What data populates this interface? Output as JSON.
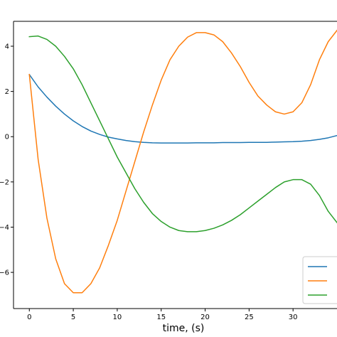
{
  "chart_data": {
    "type": "line",
    "xlabel": "time, (s)",
    "ylabel": "",
    "title": "",
    "xlim": [
      -1.8,
      35
    ],
    "ylim": [
      -7.6,
      5.1
    ],
    "xticks": [
      0,
      5,
      10,
      15,
      20,
      25,
      30
    ],
    "yticks": [
      -6,
      -4,
      -2,
      0,
      2,
      4
    ],
    "grid": false,
    "legend_placement": "bottom-right",
    "series": [
      {
        "color": "#1f77b4",
        "x": [
          0,
          1,
          2,
          3,
          4,
          5,
          6,
          7,
          8,
          9,
          10,
          11,
          12,
          13,
          14,
          15,
          16,
          17,
          18,
          19,
          20,
          21,
          22,
          23,
          24,
          25,
          26,
          27,
          28,
          29,
          30,
          31,
          32,
          33,
          34,
          35
        ],
        "y": [
          2.75,
          2.2,
          1.75,
          1.35,
          1.0,
          0.7,
          0.45,
          0.25,
          0.1,
          -0.02,
          -0.1,
          -0.17,
          -0.22,
          -0.25,
          -0.27,
          -0.28,
          -0.28,
          -0.28,
          -0.28,
          -0.27,
          -0.27,
          -0.27,
          -0.26,
          -0.26,
          -0.26,
          -0.25,
          -0.25,
          -0.25,
          -0.24,
          -0.23,
          -0.22,
          -0.2,
          -0.17,
          -0.12,
          -0.05,
          0.05
        ]
      },
      {
        "color": "#ff7f0e",
        "x": [
          0,
          1,
          2,
          3,
          4,
          5,
          6,
          7,
          8,
          9,
          10,
          11,
          12,
          13,
          14,
          15,
          16,
          17,
          18,
          19,
          20,
          21,
          22,
          23,
          24,
          25,
          26,
          27,
          28,
          29,
          30,
          31,
          32,
          33,
          34,
          35
        ],
        "y": [
          2.75,
          -1.0,
          -3.6,
          -5.4,
          -6.5,
          -6.9,
          -6.9,
          -6.5,
          -5.8,
          -4.8,
          -3.7,
          -2.4,
          -1.1,
          0.2,
          1.4,
          2.5,
          3.4,
          4.0,
          4.4,
          4.6,
          4.6,
          4.5,
          4.2,
          3.7,
          3.1,
          2.4,
          1.8,
          1.4,
          1.1,
          1.0,
          1.1,
          1.5,
          2.3,
          3.4,
          4.2,
          4.7
        ]
      },
      {
        "color": "#2ca02c",
        "x": [
          0,
          1,
          2,
          3,
          4,
          5,
          6,
          7,
          8,
          9,
          10,
          11,
          12,
          13,
          14,
          15,
          16,
          17,
          18,
          19,
          20,
          21,
          22,
          23,
          24,
          25,
          26,
          27,
          28,
          29,
          30,
          31,
          32,
          33,
          34,
          35
        ],
        "y": [
          4.42,
          4.45,
          4.3,
          4.0,
          3.55,
          3.0,
          2.3,
          1.5,
          0.7,
          -0.1,
          -0.9,
          -1.6,
          -2.3,
          -2.9,
          -3.4,
          -3.75,
          -4.0,
          -4.15,
          -4.2,
          -4.2,
          -4.15,
          -4.05,
          -3.9,
          -3.7,
          -3.45,
          -3.15,
          -2.85,
          -2.55,
          -2.25,
          -2.0,
          -1.9,
          -1.9,
          -2.1,
          -2.6,
          -3.3,
          -3.8
        ]
      }
    ]
  }
}
